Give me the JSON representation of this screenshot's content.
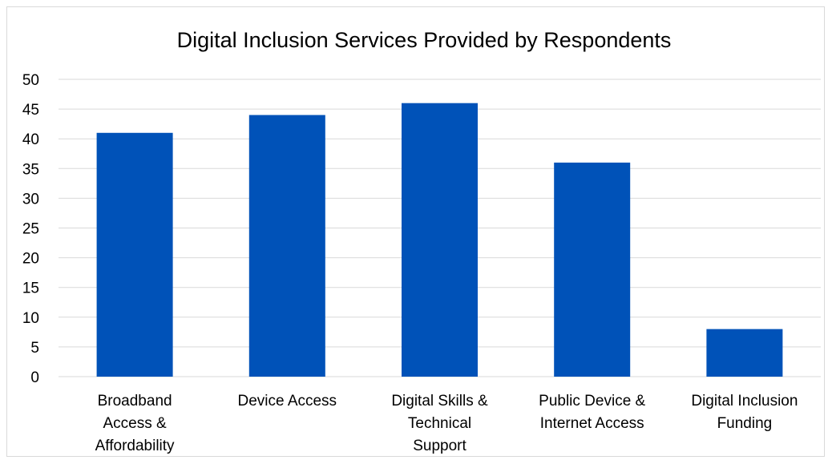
{
  "chart_data": {
    "type": "bar",
    "title": "Digital Inclusion Services Provided by Respondents",
    "categories": [
      [
        "Broadband",
        "Access &",
        "Affordability"
      ],
      [
        "Device Access"
      ],
      [
        "Digital Skills &",
        "Technical",
        "Support"
      ],
      [
        "Public Device &",
        "Internet Access"
      ],
      [
        "Digital Inclusion",
        "Funding"
      ]
    ],
    "values": [
      41,
      44,
      46,
      36,
      8
    ],
    "ylim": [
      0,
      50
    ],
    "yticks": [
      0,
      5,
      10,
      15,
      20,
      25,
      30,
      35,
      40,
      45,
      50
    ],
    "grid": true,
    "bar_color": "#0052b8",
    "legend": "none"
  }
}
